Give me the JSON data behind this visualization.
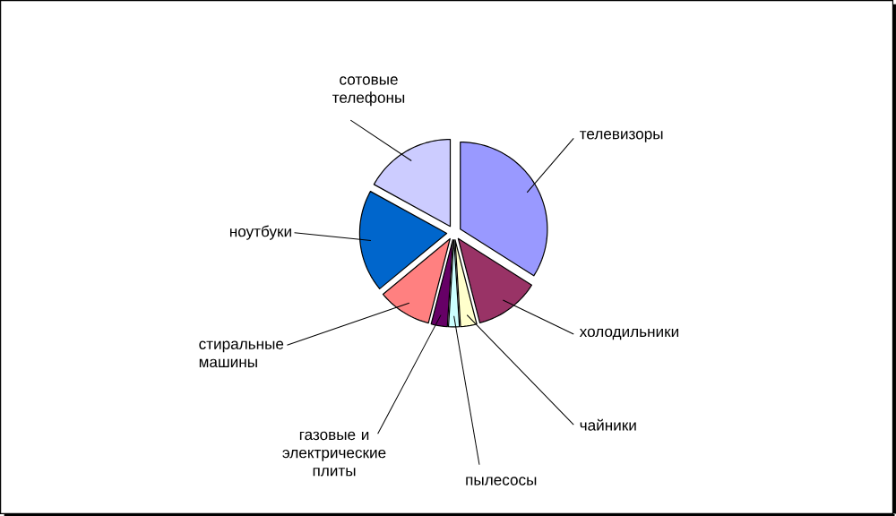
{
  "chart_data": {
    "type": "pie",
    "categories": [
      "телевизоры",
      "холодильники",
      "чайники",
      "пылесосы",
      "газовые и электрические плиты",
      "стиральные машины",
      "ноутбуки",
      "сотовые телефоны"
    ],
    "values": [
      34,
      12,
      3,
      2,
      3,
      10,
      19,
      17
    ],
    "colors": [
      "#9999ff",
      "#993366",
      "#ffffcc",
      "#ccffff",
      "#660066",
      "#ff8080",
      "#0066cc",
      "#ccccff"
    ]
  }
}
